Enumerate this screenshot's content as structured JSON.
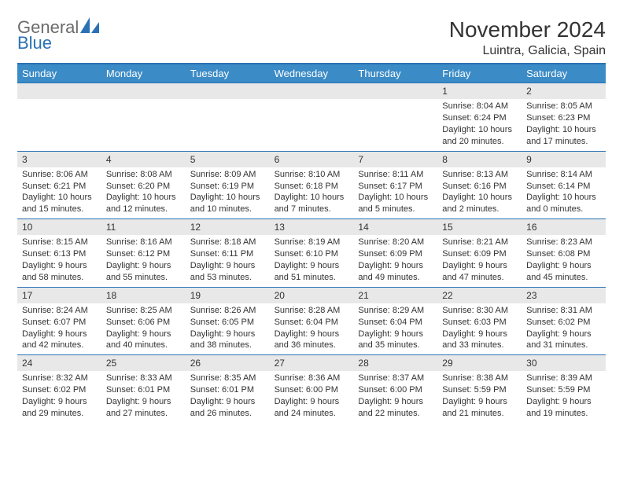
{
  "brand": {
    "general": "General",
    "blue": "Blue"
  },
  "header": {
    "title": "November 2024",
    "location": "Luintra, Galicia, Spain"
  },
  "colors": {
    "brand_blue": "#2a72b5",
    "header_bg": "#3b8bc6",
    "header_fg": "#ffffff",
    "daynum_bg": "#e8e8e8",
    "border_blue": "#2a72b5",
    "text": "#333333",
    "logo_gray": "#6b6b6b"
  },
  "day_names": [
    "Sunday",
    "Monday",
    "Tuesday",
    "Wednesday",
    "Thursday",
    "Friday",
    "Saturday"
  ],
  "weeks": [
    [
      {
        "day": null
      },
      {
        "day": null
      },
      {
        "day": null
      },
      {
        "day": null
      },
      {
        "day": null
      },
      {
        "day": "1",
        "sunrise": "Sunrise: 8:04 AM",
        "sunset": "Sunset: 6:24 PM",
        "dl1": "Daylight: 10 hours",
        "dl2": "and 20 minutes."
      },
      {
        "day": "2",
        "sunrise": "Sunrise: 8:05 AM",
        "sunset": "Sunset: 6:23 PM",
        "dl1": "Daylight: 10 hours",
        "dl2": "and 17 minutes."
      }
    ],
    [
      {
        "day": "3",
        "sunrise": "Sunrise: 8:06 AM",
        "sunset": "Sunset: 6:21 PM",
        "dl1": "Daylight: 10 hours",
        "dl2": "and 15 minutes."
      },
      {
        "day": "4",
        "sunrise": "Sunrise: 8:08 AM",
        "sunset": "Sunset: 6:20 PM",
        "dl1": "Daylight: 10 hours",
        "dl2": "and 12 minutes."
      },
      {
        "day": "5",
        "sunrise": "Sunrise: 8:09 AM",
        "sunset": "Sunset: 6:19 PM",
        "dl1": "Daylight: 10 hours",
        "dl2": "and 10 minutes."
      },
      {
        "day": "6",
        "sunrise": "Sunrise: 8:10 AM",
        "sunset": "Sunset: 6:18 PM",
        "dl1": "Daylight: 10 hours",
        "dl2": "and 7 minutes."
      },
      {
        "day": "7",
        "sunrise": "Sunrise: 8:11 AM",
        "sunset": "Sunset: 6:17 PM",
        "dl1": "Daylight: 10 hours",
        "dl2": "and 5 minutes."
      },
      {
        "day": "8",
        "sunrise": "Sunrise: 8:13 AM",
        "sunset": "Sunset: 6:16 PM",
        "dl1": "Daylight: 10 hours",
        "dl2": "and 2 minutes."
      },
      {
        "day": "9",
        "sunrise": "Sunrise: 8:14 AM",
        "sunset": "Sunset: 6:14 PM",
        "dl1": "Daylight: 10 hours",
        "dl2": "and 0 minutes."
      }
    ],
    [
      {
        "day": "10",
        "sunrise": "Sunrise: 8:15 AM",
        "sunset": "Sunset: 6:13 PM",
        "dl1": "Daylight: 9 hours",
        "dl2": "and 58 minutes."
      },
      {
        "day": "11",
        "sunrise": "Sunrise: 8:16 AM",
        "sunset": "Sunset: 6:12 PM",
        "dl1": "Daylight: 9 hours",
        "dl2": "and 55 minutes."
      },
      {
        "day": "12",
        "sunrise": "Sunrise: 8:18 AM",
        "sunset": "Sunset: 6:11 PM",
        "dl1": "Daylight: 9 hours",
        "dl2": "and 53 minutes."
      },
      {
        "day": "13",
        "sunrise": "Sunrise: 8:19 AM",
        "sunset": "Sunset: 6:10 PM",
        "dl1": "Daylight: 9 hours",
        "dl2": "and 51 minutes."
      },
      {
        "day": "14",
        "sunrise": "Sunrise: 8:20 AM",
        "sunset": "Sunset: 6:09 PM",
        "dl1": "Daylight: 9 hours",
        "dl2": "and 49 minutes."
      },
      {
        "day": "15",
        "sunrise": "Sunrise: 8:21 AM",
        "sunset": "Sunset: 6:09 PM",
        "dl1": "Daylight: 9 hours",
        "dl2": "and 47 minutes."
      },
      {
        "day": "16",
        "sunrise": "Sunrise: 8:23 AM",
        "sunset": "Sunset: 6:08 PM",
        "dl1": "Daylight: 9 hours",
        "dl2": "and 45 minutes."
      }
    ],
    [
      {
        "day": "17",
        "sunrise": "Sunrise: 8:24 AM",
        "sunset": "Sunset: 6:07 PM",
        "dl1": "Daylight: 9 hours",
        "dl2": "and 42 minutes."
      },
      {
        "day": "18",
        "sunrise": "Sunrise: 8:25 AM",
        "sunset": "Sunset: 6:06 PM",
        "dl1": "Daylight: 9 hours",
        "dl2": "and 40 minutes."
      },
      {
        "day": "19",
        "sunrise": "Sunrise: 8:26 AM",
        "sunset": "Sunset: 6:05 PM",
        "dl1": "Daylight: 9 hours",
        "dl2": "and 38 minutes."
      },
      {
        "day": "20",
        "sunrise": "Sunrise: 8:28 AM",
        "sunset": "Sunset: 6:04 PM",
        "dl1": "Daylight: 9 hours",
        "dl2": "and 36 minutes."
      },
      {
        "day": "21",
        "sunrise": "Sunrise: 8:29 AM",
        "sunset": "Sunset: 6:04 PM",
        "dl1": "Daylight: 9 hours",
        "dl2": "and 35 minutes."
      },
      {
        "day": "22",
        "sunrise": "Sunrise: 8:30 AM",
        "sunset": "Sunset: 6:03 PM",
        "dl1": "Daylight: 9 hours",
        "dl2": "and 33 minutes."
      },
      {
        "day": "23",
        "sunrise": "Sunrise: 8:31 AM",
        "sunset": "Sunset: 6:02 PM",
        "dl1": "Daylight: 9 hours",
        "dl2": "and 31 minutes."
      }
    ],
    [
      {
        "day": "24",
        "sunrise": "Sunrise: 8:32 AM",
        "sunset": "Sunset: 6:02 PM",
        "dl1": "Daylight: 9 hours",
        "dl2": "and 29 minutes."
      },
      {
        "day": "25",
        "sunrise": "Sunrise: 8:33 AM",
        "sunset": "Sunset: 6:01 PM",
        "dl1": "Daylight: 9 hours",
        "dl2": "and 27 minutes."
      },
      {
        "day": "26",
        "sunrise": "Sunrise: 8:35 AM",
        "sunset": "Sunset: 6:01 PM",
        "dl1": "Daylight: 9 hours",
        "dl2": "and 26 minutes."
      },
      {
        "day": "27",
        "sunrise": "Sunrise: 8:36 AM",
        "sunset": "Sunset: 6:00 PM",
        "dl1": "Daylight: 9 hours",
        "dl2": "and 24 minutes."
      },
      {
        "day": "28",
        "sunrise": "Sunrise: 8:37 AM",
        "sunset": "Sunset: 6:00 PM",
        "dl1": "Daylight: 9 hours",
        "dl2": "and 22 minutes."
      },
      {
        "day": "29",
        "sunrise": "Sunrise: 8:38 AM",
        "sunset": "Sunset: 5:59 PM",
        "dl1": "Daylight: 9 hours",
        "dl2": "and 21 minutes."
      },
      {
        "day": "30",
        "sunrise": "Sunrise: 8:39 AM",
        "sunset": "Sunset: 5:59 PM",
        "dl1": "Daylight: 9 hours",
        "dl2": "and 19 minutes."
      }
    ]
  ]
}
